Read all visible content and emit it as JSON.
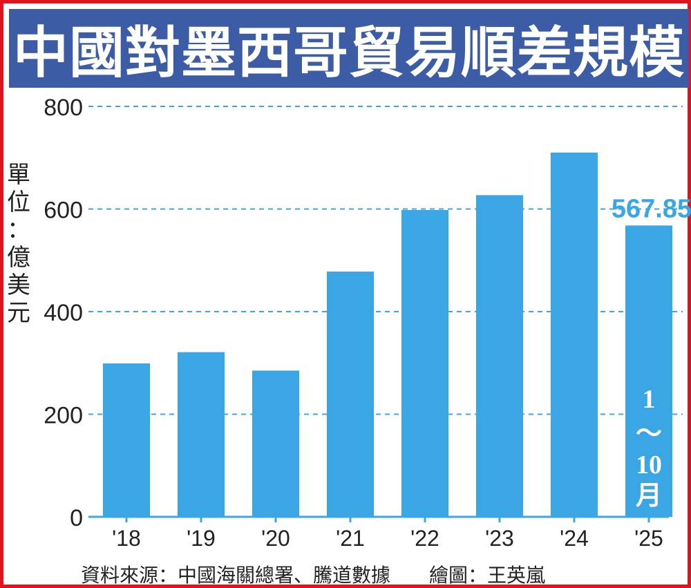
{
  "title": "中國對墨西哥貿易順差規模",
  "unit_label": [
    "單",
    "位",
    "：",
    "億",
    "美",
    "元"
  ],
  "source": "資料來源：中國海關總署、騰道數據",
  "credit": "繪圖：王英嵐",
  "colors": {
    "bar": "#3aa6e4",
    "title_bg": "#3c5ca6",
    "gridline": "#3aa6e4",
    "border": "#e0141e",
    "highlight": "#3aa6e4"
  },
  "chart_data": {
    "type": "bar",
    "categories": [
      "'18",
      "'19",
      "'20",
      "'21",
      "'22",
      "'23",
      "'24",
      "'25"
    ],
    "values": [
      299,
      321,
      285,
      478,
      598,
      627,
      710,
      567.85
    ],
    "ylim": [
      0,
      800
    ],
    "yticks": [
      0,
      200,
      400,
      600,
      800
    ],
    "grid": true,
    "xlabel": "",
    "ylabel": "單位：億美元",
    "annotations": [
      {
        "category": "'25",
        "text": "567.85",
        "placement": "above-bar"
      },
      {
        "category": "'25",
        "text": [
          "1",
          "～",
          "10",
          "月"
        ],
        "placement": "inside-bar"
      }
    ]
  }
}
